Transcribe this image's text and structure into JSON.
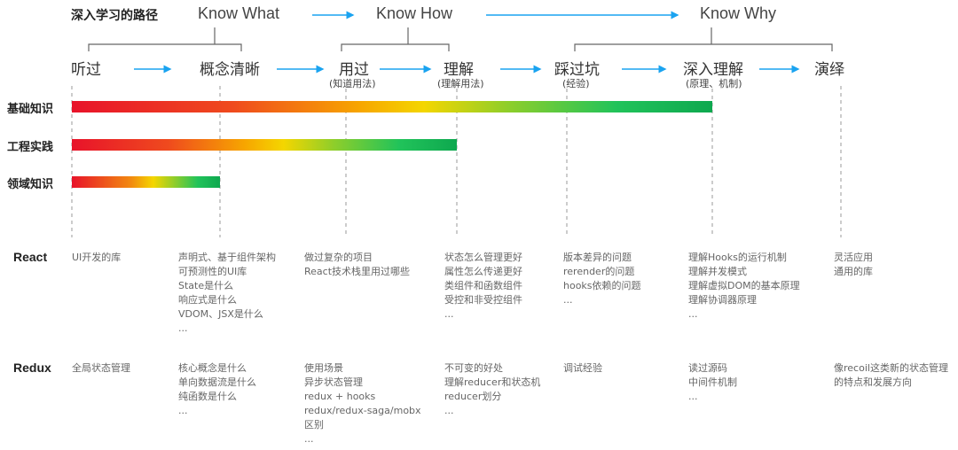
{
  "title": "深入学习的路径",
  "phases": [
    "Know What",
    "Know How",
    "Know Why"
  ],
  "stages": [
    {
      "label": "听过",
      "sub": ""
    },
    {
      "label": "概念清晰",
      "sub": ""
    },
    {
      "label": "用过",
      "sub": "(知道用法)"
    },
    {
      "label": "理解",
      "sub": "(理解用法)"
    },
    {
      "label": "踩过坑",
      "sub": "(经验)"
    },
    {
      "label": "深入理解",
      "sub": "(原理、机制)"
    },
    {
      "label": "演绎",
      "sub": ""
    }
  ],
  "bars": [
    {
      "label": "基础知识",
      "reaches_stage": "深入理解"
    },
    {
      "label": "工程实践",
      "reaches_stage": "理解"
    },
    {
      "label": "领域知识",
      "reaches_stage": "概念清晰"
    }
  ],
  "colors": {
    "arrow": "#1aa3f0",
    "bar_start": "#e8132a",
    "bar_mid": "#f4d600",
    "bar_end": "#0ea84f"
  },
  "rows": [
    {
      "name": "React",
      "cols": [
        [
          "UI开发的库"
        ],
        [
          "声明式、基于组件架构",
          "可预测性的UI库",
          "State是什么",
          "响应式是什么",
          "VDOM、JSX是什么",
          "..."
        ],
        [
          "做过复杂的项目",
          "React技术栈里用过哪些"
        ],
        [
          "状态怎么管理更好",
          "属性怎么传递更好",
          "类组件和函数组件",
          "受控和非受控组件",
          "..."
        ],
        [
          "版本差异的问题",
          "rerender的问题",
          "hooks依赖的问题",
          "..."
        ],
        [
          "理解Hooks的运行机制",
          "理解并发模式",
          "理解虚拟DOM的基本原理",
          "理解协调器原理",
          "..."
        ],
        [
          "灵活应用",
          "通用的库"
        ]
      ]
    },
    {
      "name": "Redux",
      "cols": [
        [
          "全局状态管理"
        ],
        [
          "核心概念是什么",
          "单向数据流是什么",
          "纯函数是什么",
          "..."
        ],
        [
          "使用场景",
          "异步状态管理",
          "redux + hooks",
          "redux/redux-saga/mobx",
          "区别",
          "..."
        ],
        [
          "不可变的好处",
          "理解reducer和状态机",
          "reducer划分",
          "..."
        ],
        [
          "调试经验"
        ],
        [
          "读过源码",
          "中间件机制",
          "..."
        ],
        [
          "像recoil这类新的状态管理",
          "的特点和发展方向"
        ]
      ]
    }
  ]
}
